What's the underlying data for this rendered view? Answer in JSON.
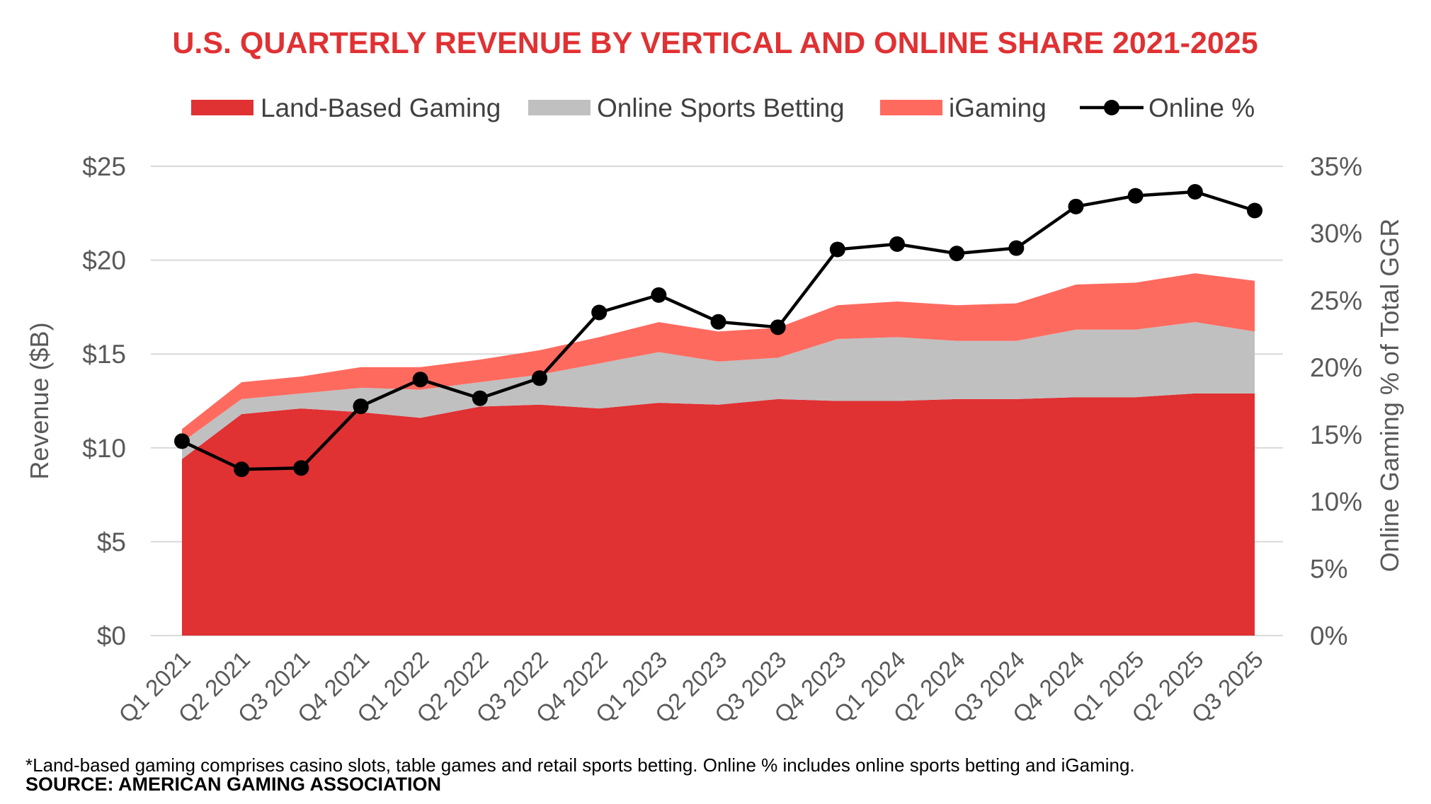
{
  "chart_data": {
    "type": "area",
    "title": "U.S. QUARTERLY REVENUE BY VERTICAL AND ONLINE SHARE 2021-2025",
    "categories": [
      "Q1 2021",
      "Q2 2021",
      "Q3 2021",
      "Q4 2021",
      "Q1 2022",
      "Q2 2022",
      "Q3 2022",
      "Q4 2022",
      "Q1 2023",
      "Q2 2023",
      "Q3 2023",
      "Q4 2023",
      "Q1 2024",
      "Q2 2024",
      "Q3 2024",
      "Q4 2024",
      "Q1 2025",
      "Q2 2025",
      "Q3 2025"
    ],
    "series": [
      {
        "name": "Land-Based Gaming",
        "type": "stacked-area",
        "axis": "left",
        "color": "#e03133",
        "values": [
          9.4,
          11.8,
          12.1,
          11.9,
          11.6,
          12.2,
          12.3,
          12.1,
          12.4,
          12.3,
          12.6,
          12.5,
          12.5,
          12.6,
          12.6,
          12.7,
          12.7,
          12.9,
          12.9
        ]
      },
      {
        "name": "Online Sports Betting",
        "type": "stacked-area",
        "axis": "left",
        "color": "#c0c0c0",
        "values": [
          0.9,
          0.8,
          0.8,
          1.3,
          1.5,
          1.3,
          1.6,
          2.4,
          2.7,
          2.3,
          2.2,
          3.3,
          3.4,
          3.1,
          3.1,
          3.6,
          3.6,
          3.8,
          3.3
        ]
      },
      {
        "name": "iGaming",
        "type": "stacked-area",
        "axis": "left",
        "color": "#ff6a5f",
        "values": [
          0.7,
          0.9,
          0.9,
          1.1,
          1.2,
          1.2,
          1.3,
          1.4,
          1.6,
          1.6,
          1.6,
          1.8,
          1.9,
          1.9,
          2.0,
          2.4,
          2.5,
          2.6,
          2.7
        ]
      },
      {
        "name": "Online %",
        "type": "line",
        "axis": "right",
        "color": "#000000",
        "values": [
          14.5,
          12.4,
          12.5,
          17.1,
          19.1,
          17.7,
          19.2,
          24.1,
          25.4,
          23.4,
          23.0,
          28.8,
          29.2,
          28.5,
          28.9,
          32.0,
          32.8,
          33.1,
          31.7
        ]
      }
    ],
    "ylabel": "Revenue ($B)",
    "ylim": [
      0,
      25
    ],
    "y_ticks": [
      "$0",
      "$5",
      "$10",
      "$15",
      "$20",
      "$25"
    ],
    "y2label": "Online Gaming % of Total GGR",
    "y2lim": [
      0,
      35
    ],
    "y2_ticks": [
      "0%",
      "5%",
      "10%",
      "15%",
      "20%",
      "25%",
      "30%",
      "35%"
    ],
    "legend": [
      "Land-Based Gaming",
      "Online Sports Betting",
      "iGaming",
      "Online %"
    ],
    "legend_position": "top",
    "grid": true
  },
  "footnote": "*Land-based gaming comprises casino slots, table games and retail sports betting. Online % includes online sports betting and iGaming.",
  "source": "SOURCE: AMERICAN GAMING ASSOCIATION"
}
